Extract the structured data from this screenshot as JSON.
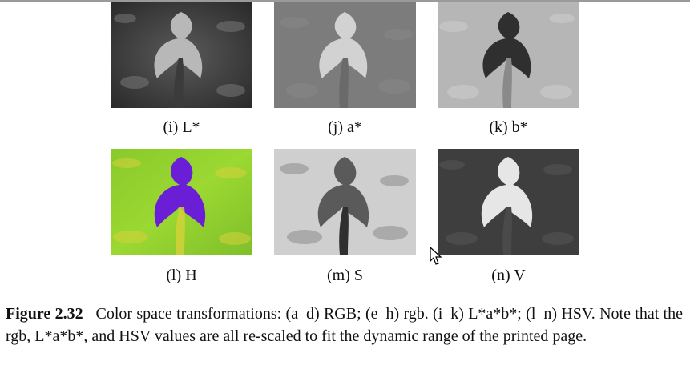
{
  "panels": [
    {
      "label": "(i) L*"
    },
    {
      "label": "(j) a*"
    },
    {
      "label": "(k) b*"
    },
    {
      "label": "(l) H"
    },
    {
      "label": "(m) S"
    },
    {
      "label": "(n) V"
    }
  ],
  "caption": {
    "figure_label": "Figure 2.32",
    "text": "Color space transformations: (a–d) RGB; (e–h) rgb. (i–k) L*a*b*; (l–n) HSV. Note that the rgb, L*a*b*, and HSV values are all re-scaled to fit the dynamic range of the printed page."
  },
  "colors": {
    "hue_green": "#8fd12b",
    "hue_purple": "#6a1fd6",
    "hue_yellow": "#d6d23a"
  }
}
